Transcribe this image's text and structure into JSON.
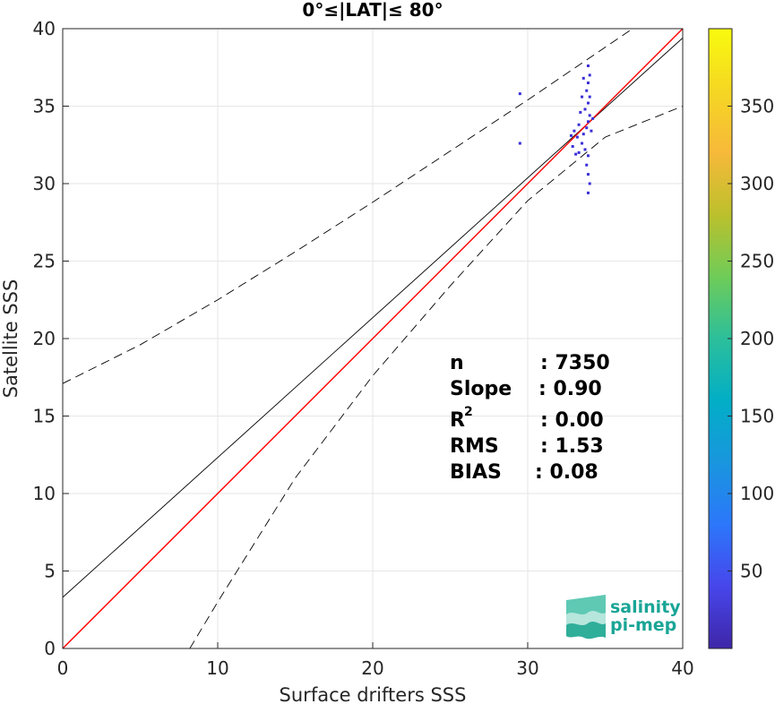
{
  "chart_data": {
    "type": "scatter",
    "title": "0°≤|LAT|≤ 80°",
    "xlabel": "Surface drifters SSS",
    "ylabel": "Satellite SSS",
    "xlim": [
      0,
      40
    ],
    "ylim": [
      0,
      40
    ],
    "xticks": [
      "0",
      "10",
      "20",
      "30",
      "40"
    ],
    "yticks": [
      "0",
      "5",
      "10",
      "15",
      "20",
      "25",
      "30",
      "35",
      "40"
    ],
    "grid": true,
    "one_to_one_line": {
      "x": [
        0,
        40
      ],
      "y": [
        0,
        40
      ],
      "color": "#ff0000"
    },
    "fit_line": {
      "x": [
        0,
        40
      ],
      "y": [
        3.3,
        39.4
      ],
      "color": "#000000"
    },
    "confidence_upper": {
      "x": [
        0,
        5,
        10,
        15,
        20,
        25,
        30,
        35,
        40
      ],
      "y": [
        17.1,
        19.6,
        22.5,
        25.6,
        28.8,
        32.1,
        35.4,
        38.8,
        42.2
      ]
    },
    "confidence_lower": {
      "x": [
        8.2,
        10,
        15,
        20,
        25,
        30,
        35,
        40
      ],
      "y": [
        0,
        3.0,
        11.0,
        17.6,
        23.4,
        28.9,
        33.0,
        35.0
      ]
    },
    "density_points": [
      {
        "x": 33.6,
        "y": 33.2
      },
      {
        "x": 33.8,
        "y": 33.6
      },
      {
        "x": 33.9,
        "y": 34.0
      },
      {
        "x": 34.0,
        "y": 34.4
      },
      {
        "x": 33.7,
        "y": 34.8
      },
      {
        "x": 33.9,
        "y": 35.2
      },
      {
        "x": 34.0,
        "y": 35.6
      },
      {
        "x": 33.8,
        "y": 36.0
      },
      {
        "x": 33.9,
        "y": 36.5
      },
      {
        "x": 34.0,
        "y": 37.0
      },
      {
        "x": 33.9,
        "y": 37.6
      },
      {
        "x": 33.5,
        "y": 32.6
      },
      {
        "x": 33.7,
        "y": 32.2
      },
      {
        "x": 33.9,
        "y": 31.8
      },
      {
        "x": 33.8,
        "y": 31.2
      },
      {
        "x": 33.9,
        "y": 30.6
      },
      {
        "x": 34.0,
        "y": 30.0
      },
      {
        "x": 33.9,
        "y": 29.4
      },
      {
        "x": 33.2,
        "y": 33.0
      },
      {
        "x": 33.0,
        "y": 33.4
      },
      {
        "x": 32.8,
        "y": 33.1
      },
      {
        "x": 33.3,
        "y": 33.8
      },
      {
        "x": 34.2,
        "y": 34.2
      },
      {
        "x": 33.4,
        "y": 34.6
      },
      {
        "x": 32.9,
        "y": 32.4
      },
      {
        "x": 33.1,
        "y": 31.9
      },
      {
        "x": 34.1,
        "y": 33.4
      },
      {
        "x": 33.5,
        "y": 35.6
      },
      {
        "x": 33.3,
        "y": 32.0
      },
      {
        "x": 33.6,
        "y": 36.8
      },
      {
        "x": 29.5,
        "y": 35.8
      },
      {
        "x": 29.5,
        "y": 32.6
      }
    ],
    "point_color": "#3a2fd6",
    "colorbar": {
      "ticks": [
        "50",
        "100",
        "150",
        "200",
        "250",
        "300",
        "350"
      ],
      "tick_values": [
        50,
        100,
        150,
        200,
        250,
        300,
        350
      ],
      "range": [
        0,
        400
      ],
      "colormap": [
        "#3e26a8",
        "#4746eb",
        "#2c77fb",
        "#1996de",
        "#02aec6",
        "#2cbf9a",
        "#6fcc58",
        "#bcc02c",
        "#f7b93a",
        "#f5d723",
        "#f9fb0e"
      ]
    }
  },
  "stats": {
    "n_label": "n",
    "n_value": ": 7350",
    "slope_label": "Slope",
    "slope_value": ": 0.90",
    "r2_label": "R",
    "r2_sup": "2",
    "r2_value": ": 0.00",
    "rms_label": "RMS",
    "rms_value": ": 1.53",
    "bias_label": "BIAS",
    "bias_value": ": 0.08"
  },
  "logo": {
    "line1": "salinity",
    "line2": "pi-mep"
  }
}
